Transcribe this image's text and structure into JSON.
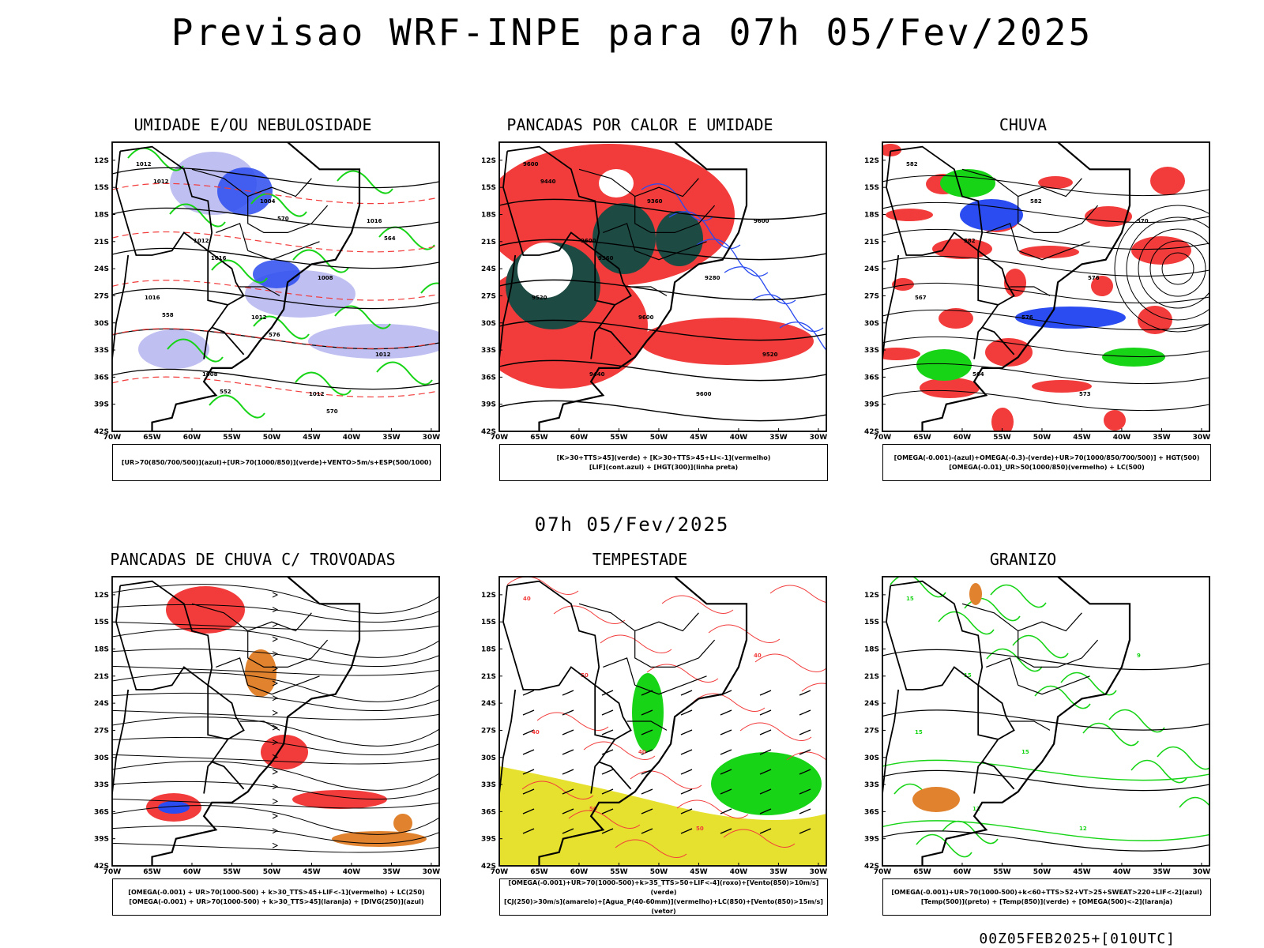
{
  "title": "Previsao WRF-INPE  para 07h 05/Fev/2025",
  "subtitle": "07h 05/Fev/2025",
  "footer": "00Z05FEB2025+[010UTC]",
  "axes": {
    "lat_labels": [
      "12S",
      "15S",
      "18S",
      "21S",
      "24S",
      "27S",
      "30S",
      "33S",
      "36S",
      "39S",
      "42S"
    ],
    "lon_labels": [
      "70W",
      "65W",
      "60W",
      "55W",
      "50W",
      "45W",
      "40W",
      "35W",
      "30W"
    ]
  },
  "colors": {
    "red": "#f23b3b",
    "blue": "#2b4cf0",
    "lightblue": "#b8b8f0",
    "green": "#17d417",
    "darkteal": "#1e4a44",
    "yellow": "#e6e02e",
    "orange": "#e0822e"
  },
  "panels": [
    {
      "id": "umidade",
      "title": "UMIDADE E/OU NEBULOSIDADE",
      "legend": [
        "[UR>70(850/700/500)](azul)+[UR>70(1000/850)](verde)+VENTO>5m/s+ESP(500/1000)"
      ],
      "contour_labels": [
        "1012",
        "1012",
        "1012",
        "1012",
        "1016",
        "1016",
        "1008",
        "1004",
        "1008",
        "1012",
        "1012",
        "1016",
        "576",
        "570",
        "564",
        "558",
        "552",
        "570"
      ]
    },
    {
      "id": "pancadas-calor",
      "title": "PANCADAS POR CALOR E UMIDADE",
      "legend": [
        "[K>30+TTS>45](verde) + [K>30+TTS>45+LI<-1](vermelho)",
        "[LIF](cont.azul) + [HGT(300)](linha preta)"
      ],
      "contour_labels": [
        "9600",
        "9600",
        "9600",
        "9600",
        "9600",
        "9520",
        "9440",
        "9360",
        "9280",
        "9520",
        "9440",
        "9360"
      ]
    },
    {
      "id": "chuva",
      "title": "CHUVA",
      "legend": [
        "[OMEGA(-0.001)-(azul)+OMEGA(-0.3)-(verde)+UR>70(1000/850/700/500)] + HGT(500)",
        "[OMEGA(-0.01)_UR>50(1000/850)(vermelho) + LC(500)"
      ],
      "contour_labels": [
        "582",
        "582",
        "576",
        "573",
        "570",
        "567",
        "564",
        "582",
        "576"
      ]
    },
    {
      "id": "pancadas-trovoadas",
      "title": "PANCADAS DE CHUVA C/ TROVOADAS",
      "legend": [
        "[OMEGA(-0.001) + UR>70(1000-500) + k>30_TTS>45+LIF<-1](vermelho) + LC(250)",
        "[OMEGA(-0.001) + UR>70(1000-500) + k>30_TTS>45](laranja) + [DIVG(250)](azul)"
      ],
      "contour_labels": []
    },
    {
      "id": "tempestade",
      "title": "TEMPESTADE",
      "legend": [
        "[OMEGA(-0.001)+UR>70(1000-500)+k>35_TTS>50+LIF<-4](roxo)+[Vento(850)>10m/s](verde)",
        "[CJ(250)>30m/s](amarelo)+[Agua_P(40-60mm)](vermelho)+LC(850)+[Vento(850)>15m/s](vetor)"
      ],
      "contour_labels": [
        "40",
        "50",
        "40",
        "50",
        "40",
        "40",
        "50"
      ]
    },
    {
      "id": "granizo",
      "title": "GRANIZO",
      "legend": [
        "[OMEGA(-0.001)+UR>70(1000-500)+k<60+TTS>52+VT>25+SWEAT>220+LIF<-2](azul)",
        "[Temp(500)](preto) + [Temp(850)](verde) + [OMEGA(500)<-2](laranja)"
      ],
      "contour_labels": [
        "15",
        "15",
        "15",
        "12",
        "9",
        "15",
        "12"
      ]
    }
  ]
}
